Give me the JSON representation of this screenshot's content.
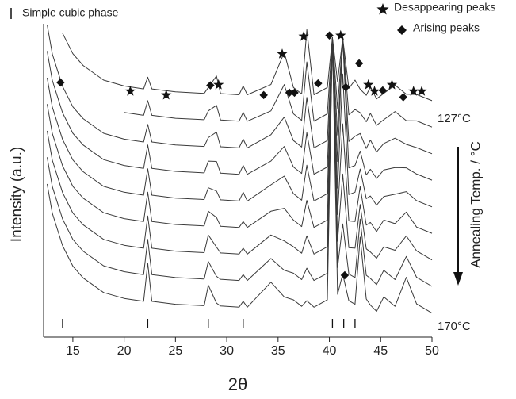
{
  "chart_data": {
    "type": "line",
    "x_label": "2θ",
    "y_label": "Intensity (a.u.)",
    "right_label": "Annealing Temp. / °C",
    "top_label": "127°C",
    "bottom_label": "170°C",
    "xlim": [
      12.15,
      50
    ],
    "xticks": [
      15,
      20,
      25,
      30,
      35,
      40,
      45,
      50
    ],
    "ylim": [
      -6.8,
      100
    ],
    "color": "#3a3a3a",
    "x": [
      12.5,
      13,
      14,
      15,
      16,
      18,
      20,
      21.9,
      22.3,
      22.7,
      25,
      27.8,
      28.2,
      29.0,
      29.4,
      31.2,
      31.6,
      32,
      34.3,
      35.6,
      36.5,
      37.3,
      37.8,
      38.5,
      39.8,
      40.3,
      40.8,
      41.3,
      41.9,
      42.5,
      43.0,
      43.6,
      44.0,
      44.6,
      45.3,
      46.4,
      47.5,
      48.5,
      50
    ],
    "series": [
      {
        "values": [
          45.4,
          35.4,
          24.4,
          17.4,
          13.4,
          8.4,
          6.4,
          5.4,
          18.4,
          5.4,
          4.4,
          3.9,
          10.9,
          4.8,
          3.8,
          3.4,
          5.4,
          3.4,
          11.9,
          6.9,
          5.9,
          3.7,
          5.6,
          3.4,
          5.9,
          94.9,
          7.8,
          14.7,
          5.6,
          4.4,
          27.3,
          6.2,
          4.1,
          2.0,
          6.9,
          3.7,
          13.6,
          4.5,
          1.4
        ]
      },
      {
        "values": [
          54.5,
          44.5,
          33.5,
          26.5,
          22.5,
          17.5,
          15.5,
          14.5,
          26.5,
          14.5,
          13.5,
          13.0,
          19.0,
          13.9,
          12.9,
          12.5,
          14.5,
          12.5,
          20.0,
          16.0,
          15.0,
          12.8,
          16.7,
          12.5,
          15.0,
          95.0,
          16.9,
          31.8,
          14.7,
          13.5,
          33.4,
          14.3,
          13.2,
          11.1,
          16.0,
          12.8,
          20.7,
          13.6,
          10.5
        ]
      },
      {
        "values": [
          63.5,
          53.5,
          42.5,
          35.5,
          31.5,
          26.5,
          24.5,
          23.5,
          34.5,
          23.5,
          22.5,
          22.0,
          28.0,
          23.9,
          21.9,
          21.5,
          23.5,
          21.5,
          28.0,
          26.0,
          24.0,
          21.8,
          27.7,
          21.5,
          24.0,
          95.0,
          25.9,
          48.8,
          23.7,
          23.5,
          38.4,
          23.3,
          22.2,
          20.1,
          24.0,
          22.8,
          27.7,
          22.6,
          19.5
        ]
      },
      {
        "values": [
          72.6,
          62.6,
          51.6,
          44.6,
          40.6,
          35.6,
          33.6,
          32.6,
          42.6,
          32.6,
          31.6,
          31.1,
          36.1,
          34.0,
          31.0,
          30.6,
          32.6,
          30.6,
          36.1,
          37.1,
          33.1,
          30.9,
          39.8,
          30.6,
          33.1,
          95.1,
          35.0,
          65.9,
          32.8,
          32.6,
          44.5,
          31.4,
          32.3,
          29.2,
          33.1,
          31.9,
          35.8,
          30.7,
          28.6
        ]
      },
      {
        "values": [
          81.6,
          71.6,
          60.6,
          53.6,
          49.6,
          44.6,
          42.6,
          41.6,
          50.6,
          41.6,
          40.6,
          40.1,
          44.1,
          43.0,
          40.0,
          39.6,
          42.6,
          39.6,
          45.1,
          48.1,
          42.1,
          39.9,
          51.8,
          39.6,
          42.1,
          95.1,
          44.0,
          82.9,
          41.8,
          42.6,
          50.5,
          40.4,
          41.3,
          38.2,
          41.1,
          41.9,
          42.8,
          39.7,
          37.6
        ]
      },
      {
        "values": [
          90.7,
          80.7,
          69.7,
          62.7,
          58.7,
          53.7,
          51.7,
          50.7,
          58.7,
          50.7,
          49.7,
          49.2,
          53.2,
          53.1,
          49.1,
          48.7,
          51.7,
          48.7,
          53.2,
          58.2,
          51.2,
          49.0,
          62.9,
          48.7,
          51.2,
          95.2,
          53.1,
          95.0,
          50.9,
          51.7,
          56.6,
          48.5,
          50.4,
          47.3,
          50.2,
          51.0,
          50.9,
          48.8,
          46.7
        ]
      },
      {
        "values": [
          99.7,
          89.7,
          78.7,
          71.7,
          67.7,
          62.7,
          60.7,
          59.7,
          65.7,
          59.7,
          58.7,
          58.2,
          61.2,
          63.1,
          58.1,
          57.7,
          60.7,
          57.7,
          62.2,
          68.2,
          60.2,
          58.0,
          74.9,
          57.7,
          60.2,
          95.2,
          62.1,
          95.0,
          59.9,
          61.7,
          62.6,
          57.5,
          60.4,
          56.3,
          59.2,
          61.0,
          58.9,
          57.8,
          55.7
        ]
      },
      {
        "values": [
          null,
          null,
          null,
          null,
          null,
          null,
          69.8,
          68.8,
          73.8,
          68.8,
          67.8,
          67.3,
          70.3,
          72.2,
          67.2,
          66.8,
          69.8,
          66.8,
          70.3,
          79.3,
          69.3,
          67.1,
          87.0,
          66.8,
          69.3,
          95.3,
          71.2,
          95.1,
          69.0,
          70.8,
          69.7,
          66.6,
          69.5,
          65.4,
          67.3,
          70.1,
          67.0,
          66.9,
          64.8
        ]
      },
      {
        "values": [
          null,
          null,
          96.8,
          89.8,
          85.8,
          80.8,
          78.8,
          77.8,
          81.8,
          77.8,
          76.8,
          76.3,
          78.3,
          82.2,
          76.2,
          75.8,
          78.8,
          75.8,
          79.3,
          90.3,
          78.3,
          76.1,
          98.0,
          75.8,
          78.3,
          95.3,
          80.2,
          95.1,
          78.0,
          80.8,
          77.7,
          75.6,
          78.5,
          74.4,
          76.3,
          79.1,
          76.0,
          75.9,
          73.8
        ]
      }
    ],
    "markers": [
      {
        "name": "Desappearing peaks",
        "symbol": "star",
        "color": "#111111",
        "x": [
          20.6,
          24.1,
          29.2,
          35.4,
          37.5,
          41.1,
          43.8,
          44.4,
          46.1,
          48.2,
          49.0
        ],
        "y": [
          77,
          75.7,
          79.2,
          89.7,
          95.7,
          96,
          79.2,
          77,
          79.2,
          77,
          77
        ]
      },
      {
        "name": "Arising peaks",
        "symbol": "diamond",
        "color": "#111111",
        "x": [
          13.8,
          28.4,
          33.6,
          36.1,
          36.6,
          38.9,
          40.0,
          41.6,
          42.9,
          45.2,
          47.2,
          41.5
        ],
        "y": [
          80,
          79,
          75.7,
          76.5,
          76.5,
          79.7,
          96,
          78.4,
          86.5,
          77.3,
          75,
          14.3
        ]
      }
    ],
    "phase": {
      "name": "Simple cubic phase",
      "x": [
        14,
        22.3,
        28.2,
        31.6,
        40.3,
        41.4,
        42.5
      ]
    }
  }
}
